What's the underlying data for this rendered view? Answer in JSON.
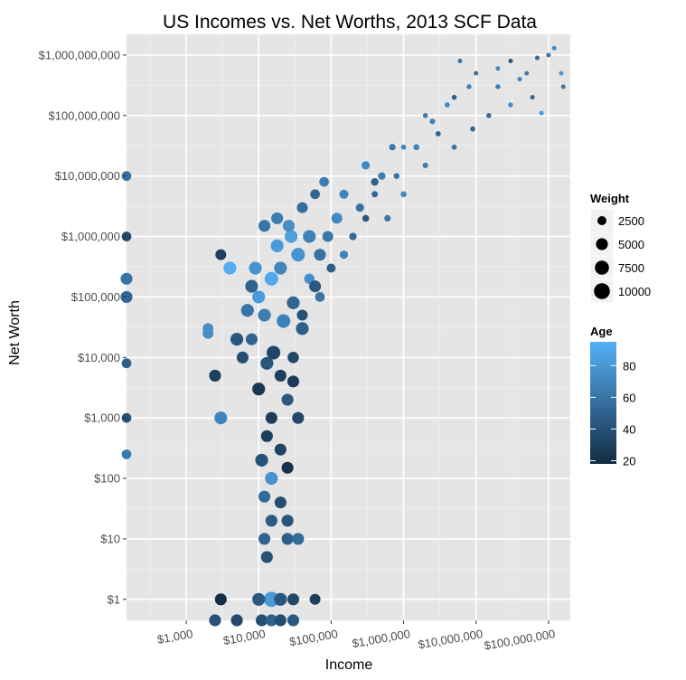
{
  "chart_data": {
    "type": "scatter",
    "title": "US Incomes vs. Net Worths, 2013 SCF Data",
    "xlabel": "Income",
    "ylabel": "Net Worth",
    "x_scale": "log10",
    "y_scale": "log10",
    "xlim": [
      150,
      200000000
    ],
    "ylim": [
      0.45,
      2200000000
    ],
    "x_ticks": [
      {
        "value": 1000,
        "label": "$1,000"
      },
      {
        "value": 10000,
        "label": "$10,000"
      },
      {
        "value": 100000,
        "label": "$100,000"
      },
      {
        "value": 1000000,
        "label": "$1,000,000"
      },
      {
        "value": 10000000,
        "label": "$10,000,000"
      },
      {
        "value": 100000000,
        "label": "$100,000,000"
      }
    ],
    "y_ticks": [
      {
        "value": 1,
        "label": "$1"
      },
      {
        "value": 10,
        "label": "$10"
      },
      {
        "value": 100,
        "label": "$100"
      },
      {
        "value": 1000,
        "label": "$1,000"
      },
      {
        "value": 10000,
        "label": "$10,000"
      },
      {
        "value": 100000,
        "label": "$100,000"
      },
      {
        "value": 1000000,
        "label": "$1,000,000"
      },
      {
        "value": 10000000,
        "label": "$10,000,000"
      },
      {
        "value": 100000000,
        "label": "$100,000,000"
      },
      {
        "value": 1000000000,
        "label": "$1,000,000,000"
      }
    ],
    "grid": true,
    "background_color": "#e5e5e5",
    "size_legend": {
      "title": "Weight",
      "entries": [
        {
          "value": 2500,
          "label": "2500"
        },
        {
          "value": 5000,
          "label": "5000"
        },
        {
          "value": 7500,
          "label": "7500"
        },
        {
          "value": 10000,
          "label": "10000"
        }
      ]
    },
    "color_legend": {
      "title": "Age",
      "ticks": [
        {
          "value": 20,
          "label": "20"
        },
        {
          "value": 40,
          "label": "40"
        },
        {
          "value": 60,
          "label": "60"
        },
        {
          "value": 80,
          "label": "80"
        }
      ],
      "range": [
        18,
        95
      ],
      "low_color": "#132b43",
      "high_color": "#56b1f7"
    },
    "points": [
      {
        "x": 100000000.0,
        "y": 1000000000.0,
        "weight": 300,
        "age": 60
      },
      {
        "x": 120000000.0,
        "y": 1300000000.0,
        "weight": 300,
        "age": 72
      },
      {
        "x": 70000000.0,
        "y": 900000000.0,
        "weight": 300,
        "age": 55
      },
      {
        "x": 150000000.0,
        "y": 500000000.0,
        "weight": 300,
        "age": 80
      },
      {
        "x": 50000000.0,
        "y": 500000000.0,
        "weight": 300,
        "age": 66
      },
      {
        "x": 30000000.0,
        "y": 800000000.0,
        "weight": 300,
        "age": 45
      },
      {
        "x": 20000000.0,
        "y": 600000000.0,
        "weight": 300,
        "age": 70
      },
      {
        "x": 160000000.0,
        "y": 300000000.0,
        "weight": 300,
        "age": 62
      },
      {
        "x": 60000000.0,
        "y": 200000000.0,
        "weight": 300,
        "age": 52
      },
      {
        "x": 10000000.0,
        "y": 500000000.0,
        "weight": 300,
        "age": 58
      },
      {
        "x": 8000000.0,
        "y": 300000000.0,
        "weight": 400,
        "age": 68
      },
      {
        "x": 5000000.0,
        "y": 200000000.0,
        "weight": 400,
        "age": 48
      },
      {
        "x": 30000000.0,
        "y": 150000000.0,
        "weight": 400,
        "age": 75
      },
      {
        "x": 15000000.0,
        "y": 100000000.0,
        "weight": 400,
        "age": 55
      },
      {
        "x": 2000000.0,
        "y": 100000000.0,
        "weight": 400,
        "age": 64
      },
      {
        "x": 3000000.0,
        "y": 50000000.0,
        "weight": 500,
        "age": 50
      },
      {
        "x": 1000000.0,
        "y": 30000000.0,
        "weight": 500,
        "age": 70
      },
      {
        "x": 5000000.0,
        "y": 30000000.0,
        "weight": 500,
        "age": 60
      },
      {
        "x": 800000.0,
        "y": 10000000.0,
        "weight": 700,
        "age": 58
      },
      {
        "x": 2000000.0,
        "y": 15000000.0,
        "weight": 600,
        "age": 66
      },
      {
        "x": 400000.0,
        "y": 5000000.0,
        "weight": 900,
        "age": 52
      },
      {
        "x": 1000000.0,
        "y": 5000000.0,
        "weight": 800,
        "age": 72
      },
      {
        "x": 300000.0,
        "y": 2000000.0,
        "weight": 1200,
        "age": 45
      },
      {
        "x": 600000.0,
        "y": 2000000.0,
        "weight": 1000,
        "age": 62
      },
      {
        "x": 200000.0,
        "y": 1000000.0,
        "weight": 1500,
        "age": 55
      },
      {
        "x": 150000.0,
        "y": 500000.0,
        "weight": 2000,
        "age": 68
      },
      {
        "x": 100000.0,
        "y": 300000.0,
        "weight": 2500,
        "age": 48
      },
      {
        "x": 70000.0,
        "y": 100000.0,
        "weight": 3000,
        "age": 60
      },
      {
        "x": 50000.0,
        "y": 200000.0,
        "weight": 3500,
        "age": 75
      },
      {
        "x": 40000.0,
        "y": 50000.0,
        "weight": 4000,
        "age": 40
      },
      {
        "x": 30000.0,
        "y": 10000.0,
        "weight": 4500,
        "age": 35
      },
      {
        "x": 20000.0,
        "y": 5000.0,
        "weight": 5000,
        "age": 30
      },
      {
        "x": 15000.0,
        "y": 1000.0,
        "weight": 5000,
        "age": 28
      },
      {
        "x": 10000.0,
        "y": 100000.0,
        "weight": 6000,
        "age": 82
      },
      {
        "x": 20000.0,
        "y": 300000.0,
        "weight": 6000,
        "age": 70
      },
      {
        "x": 12000.0,
        "y": 50000.0,
        "weight": 6000,
        "age": 65
      },
      {
        "x": 8000.0,
        "y": 20000.0,
        "weight": 5000,
        "age": 50
      },
      {
        "x": 6000.0,
        "y": 10000.0,
        "weight": 5000,
        "age": 38
      },
      {
        "x": 10000.0,
        "y": 3000.0,
        "weight": 6000,
        "age": 25
      },
      {
        "x": 13000.0,
        "y": 500,
        "weight": 5000,
        "age": 30
      },
      {
        "x": 25000.0,
        "y": 2000.0,
        "weight": 5000,
        "age": 45
      },
      {
        "x": 35000.0,
        "y": 500000.0,
        "weight": 7000,
        "age": 78
      },
      {
        "x": 28000.0,
        "y": 1000000.0,
        "weight": 6000,
        "age": 85
      },
      {
        "x": 18000.0,
        "y": 2000000.0,
        "weight": 5000,
        "age": 65
      },
      {
        "x": 50000.0,
        "y": 1000000.0,
        "weight": 6000,
        "age": 68
      },
      {
        "x": 70000.0,
        "y": 500000.0,
        "weight": 5000,
        "age": 58
      },
      {
        "x": 120000.0,
        "y": 2000000.0,
        "weight": 4000,
        "age": 72
      },
      {
        "x": 90000.0,
        "y": 1000000.0,
        "weight": 4000,
        "age": 62
      },
      {
        "x": 15000.0,
        "y": 200000.0,
        "weight": 7000,
        "age": 90
      },
      {
        "x": 4000.0,
        "y": 300000.0,
        "weight": 5000,
        "age": 92
      },
      {
        "x": 3000.0,
        "y": 500000.0,
        "weight": 4000,
        "age": 30
      },
      {
        "x": 2000.0,
        "y": 30000.0,
        "weight": 4000,
        "age": 75
      },
      {
        "x": 13000.0,
        "y": 8000.0,
        "weight": 6000,
        "age": 42
      },
      {
        "x": 30000.0,
        "y": 80000.0,
        "weight": 6000,
        "age": 52
      },
      {
        "x": 40000.0,
        "y": 30000.0,
        "weight": 6000,
        "age": 48
      },
      {
        "x": 60000.0,
        "y": 150000.0,
        "weight": 5000,
        "age": 44
      },
      {
        "x": 22000.0,
        "y": 40000.0,
        "weight": 7000,
        "age": 68
      },
      {
        "x": 9000.0,
        "y": 300000.0,
        "weight": 6000,
        "age": 78
      },
      {
        "x": 16000.0,
        "y": 12000.0,
        "weight": 7000,
        "age": 33
      },
      {
        "x": 30000.0,
        "y": 4000.0,
        "weight": 5000,
        "age": 27
      },
      {
        "x": 35000.0,
        "y": 1000.0,
        "weight": 5000,
        "age": 35
      },
      {
        "x": 20000.0,
        "y": 300,
        "weight": 5000,
        "age": 32
      },
      {
        "x": 11000.0,
        "y": 200,
        "weight": 6000,
        "age": 40
      },
      {
        "x": 15000.0,
        "y": 100,
        "weight": 6000,
        "age": 78
      },
      {
        "x": 25000.0,
        "y": 150,
        "weight": 5000,
        "age": 22
      },
      {
        "x": 12000.0,
        "y": 50,
        "weight": 5000,
        "age": 55
      },
      {
        "x": 20000.0,
        "y": 40,
        "weight": 5000,
        "age": 38
      },
      {
        "x": 15000.0,
        "y": 20,
        "weight": 5000,
        "age": 45
      },
      {
        "x": 25000.0,
        "y": 20,
        "weight": 5000,
        "age": 42
      },
      {
        "x": 12000.0,
        "y": 10,
        "weight": 5000,
        "age": 50
      },
      {
        "x": 25000.0,
        "y": 10,
        "weight": 5000,
        "age": 48
      },
      {
        "x": 35000.0,
        "y": 10,
        "weight": 5000,
        "age": 55
      },
      {
        "x": 13000.0,
        "y": 5,
        "weight": 5000,
        "age": 40
      },
      {
        "x": 15000.0,
        "y": 1,
        "weight": 9000,
        "age": 82
      },
      {
        "x": 10000.0,
        "y": 1,
        "weight": 6000,
        "age": 45
      },
      {
        "x": 20000.0,
        "y": 1,
        "weight": 6000,
        "age": 42
      },
      {
        "x": 3000.0,
        "y": 1,
        "weight": 5000,
        "age": 20
      },
      {
        "x": 30000.0,
        "y": 1,
        "weight": 5000,
        "age": 35
      },
      {
        "x": 60000.0,
        "y": 1,
        "weight": 4000,
        "age": 30
      },
      {
        "x": 11000.0,
        "y": 0.45,
        "weight": 5000,
        "age": 40
      },
      {
        "x": 15000.0,
        "y": 0.45,
        "weight": 5000,
        "age": 50
      },
      {
        "x": 20000.0,
        "y": 0.45,
        "weight": 5000,
        "age": 38
      },
      {
        "x": 30000.0,
        "y": 0.45,
        "weight": 5000,
        "age": 45
      },
      {
        "x": 5000.0,
        "y": 0.45,
        "weight": 5000,
        "age": 35
      },
      {
        "x": 2500.0,
        "y": 0.45,
        "weight": 5000,
        "age": 40
      },
      {
        "x": 150,
        "y": 200000.0,
        "weight": 5000,
        "age": 60
      },
      {
        "x": 150,
        "y": 100000.0,
        "weight": 5000,
        "age": 52
      },
      {
        "x": 150,
        "y": 8000.0,
        "weight": 3000,
        "age": 48
      },
      {
        "x": 150,
        "y": 1000.0,
        "weight": 3000,
        "age": 40
      },
      {
        "x": 150,
        "y": 1000000.0,
        "weight": 3000,
        "age": 35
      },
      {
        "x": 150,
        "y": 10000000.0,
        "weight": 3000,
        "age": 58
      },
      {
        "x": 150,
        "y": 250,
        "weight": 3000,
        "age": 62
      },
      {
        "x": 4000.0,
        "y": 300000.0,
        "weight": 6000,
        "age": 92
      },
      {
        "x": 2000.0,
        "y": 25000.0,
        "weight": 4000,
        "age": 75
      },
      {
        "x": 2500.0,
        "y": 5000.0,
        "weight": 5000,
        "age": 30
      },
      {
        "x": 3000.0,
        "y": 1000.0,
        "weight": 6000,
        "age": 70
      },
      {
        "x": 5000.0,
        "y": 20000.0,
        "weight": 6000,
        "age": 42
      },
      {
        "x": 7000.0,
        "y": 60000.0,
        "weight": 6000,
        "age": 60
      },
      {
        "x": 8000.0,
        "y": 150000.0,
        "weight": 6000,
        "age": 50
      },
      {
        "x": 18000.0,
        "y": 700000.0,
        "weight": 6000,
        "age": 82
      },
      {
        "x": 26000.0,
        "y": 1500000.0,
        "weight": 5000,
        "age": 75
      },
      {
        "x": 12000.0,
        "y": 1500000.0,
        "weight": 5000,
        "age": 60
      },
      {
        "x": 40000.0,
        "y": 3000000.0,
        "weight": 4000,
        "age": 56
      },
      {
        "x": 60000.0,
        "y": 5000000.0,
        "weight": 3000,
        "age": 52
      },
      {
        "x": 80000.0,
        "y": 8000000.0,
        "weight": 3000,
        "age": 64
      },
      {
        "x": 150000.0,
        "y": 5000000.0,
        "weight": 2500,
        "age": 70
      },
      {
        "x": 300000.0,
        "y": 15000000.0,
        "weight": 2000,
        "age": 72
      },
      {
        "x": 500000.0,
        "y": 10000000.0,
        "weight": 1500,
        "age": 66
      },
      {
        "x": 250000.0,
        "y": 3000000.0,
        "weight": 2000,
        "age": 58
      },
      {
        "x": 400000.0,
        "y": 8000000.0,
        "weight": 1500,
        "age": 48
      },
      {
        "x": 700000.0,
        "y": 30000000.0,
        "weight": 1000,
        "age": 62
      },
      {
        "x": 1500000.0,
        "y": 30000000.0,
        "weight": 800,
        "age": 70
      },
      {
        "x": 2500000.0,
        "y": 80000000.0,
        "weight": 600,
        "age": 66
      },
      {
        "x": 4000000.0,
        "y": 150000000.0,
        "weight": 500,
        "age": 74
      },
      {
        "x": 9000000.0,
        "y": 60000000.0,
        "weight": 500,
        "age": 52
      },
      {
        "x": 20000000.0,
        "y": 300000000.0,
        "weight": 400,
        "age": 64
      },
      {
        "x": 40000000.0,
        "y": 400000000.0,
        "weight": 300,
        "age": 70
      },
      {
        "x": 6000000.0,
        "y": 800000000.0,
        "weight": 300,
        "age": 58
      },
      {
        "x": 80000000.0,
        "y": 110000000.0,
        "weight": 300,
        "age": 80
      }
    ]
  }
}
